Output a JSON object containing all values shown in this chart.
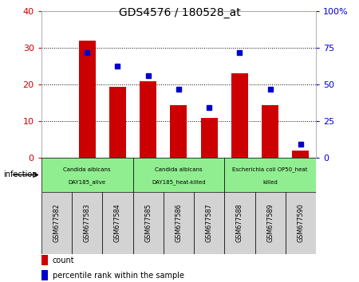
{
  "title": "GDS4576 / 180528_at",
  "samples": [
    "GSM677582",
    "GSM677583",
    "GSM677584",
    "GSM677585",
    "GSM677586",
    "GSM677587",
    "GSM677588",
    "GSM677589",
    "GSM677590"
  ],
  "counts": [
    0,
    32,
    19.5,
    21,
    14.5,
    11,
    23,
    14.5,
    2
  ],
  "percentile_ranks": [
    0,
    28.75,
    25.0,
    22.5,
    18.75,
    13.75,
    28.75,
    18.75,
    3.75
  ],
  "ylim_left": [
    0,
    40
  ],
  "ylim_right": [
    0,
    100
  ],
  "yticks_left": [
    0,
    10,
    20,
    30,
    40
  ],
  "yticks_right": [
    0,
    25,
    50,
    75,
    100
  ],
  "ytick_labels_left": [
    "0",
    "10",
    "20",
    "30",
    "40"
  ],
  "ytick_labels_right": [
    "0",
    "25",
    "50",
    "75",
    "100%"
  ],
  "bar_color": "#cc0000",
  "dot_color": "#0000cc",
  "bar_width": 0.55,
  "groups": [
    {
      "label": "Candida albicans\nDAY185_alive",
      "start": 0,
      "end": 3,
      "color": "#90EE90"
    },
    {
      "label": "Candida albicans\nDAY185_heat-killed",
      "start": 3,
      "end": 6,
      "color": "#90EE90"
    },
    {
      "label": "Escherichia coli OP50_heat\nkilled",
      "start": 6,
      "end": 9,
      "color": "#90EE90"
    }
  ],
  "group_factor_label": "infection",
  "legend_items": [
    {
      "label": "count",
      "color": "#cc0000"
    },
    {
      "label": "percentile rank within the sample",
      "color": "#0000cc"
    }
  ],
  "sample_box_color": "#d3d3d3",
  "bg_color": "#ffffff"
}
